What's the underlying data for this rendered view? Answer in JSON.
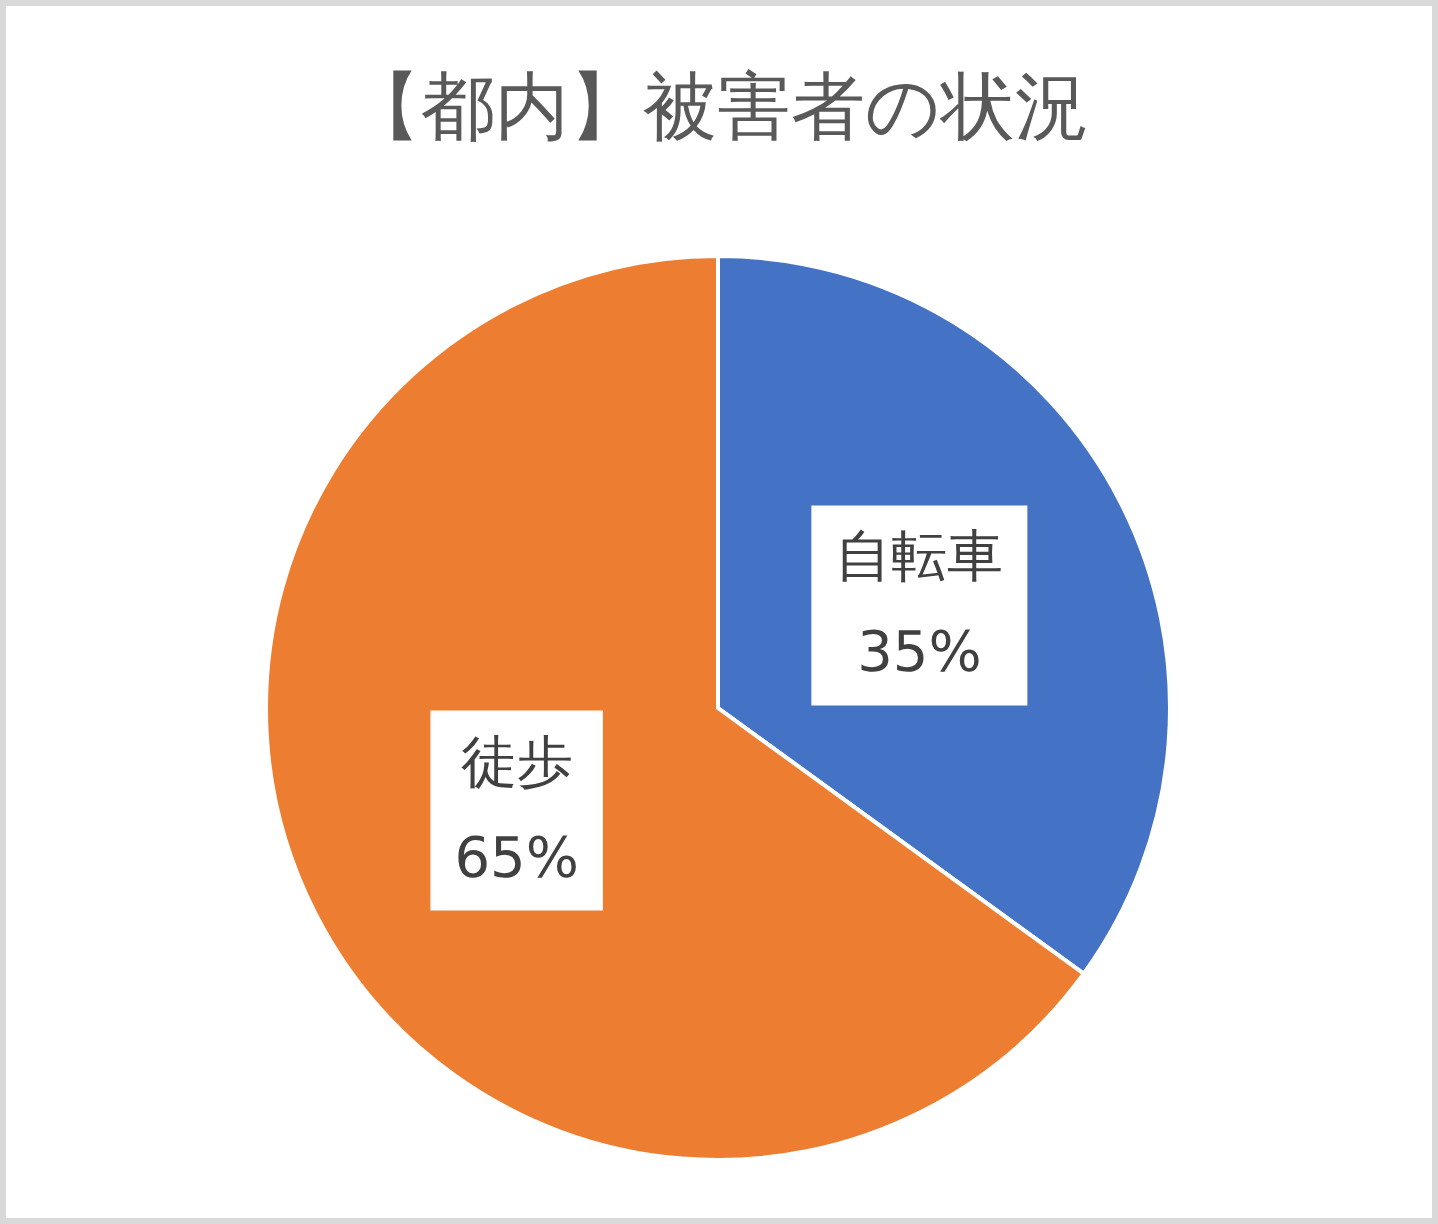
{
  "chart_data": {
    "type": "pie",
    "title": "【都内】被害者の状況",
    "categories": [
      "自転車",
      "徒歩"
    ],
    "values": [
      35,
      65
    ],
    "colors": [
      "#4472c4",
      "#ed7d31"
    ],
    "value_labels": [
      "35%",
      "65%"
    ]
  }
}
